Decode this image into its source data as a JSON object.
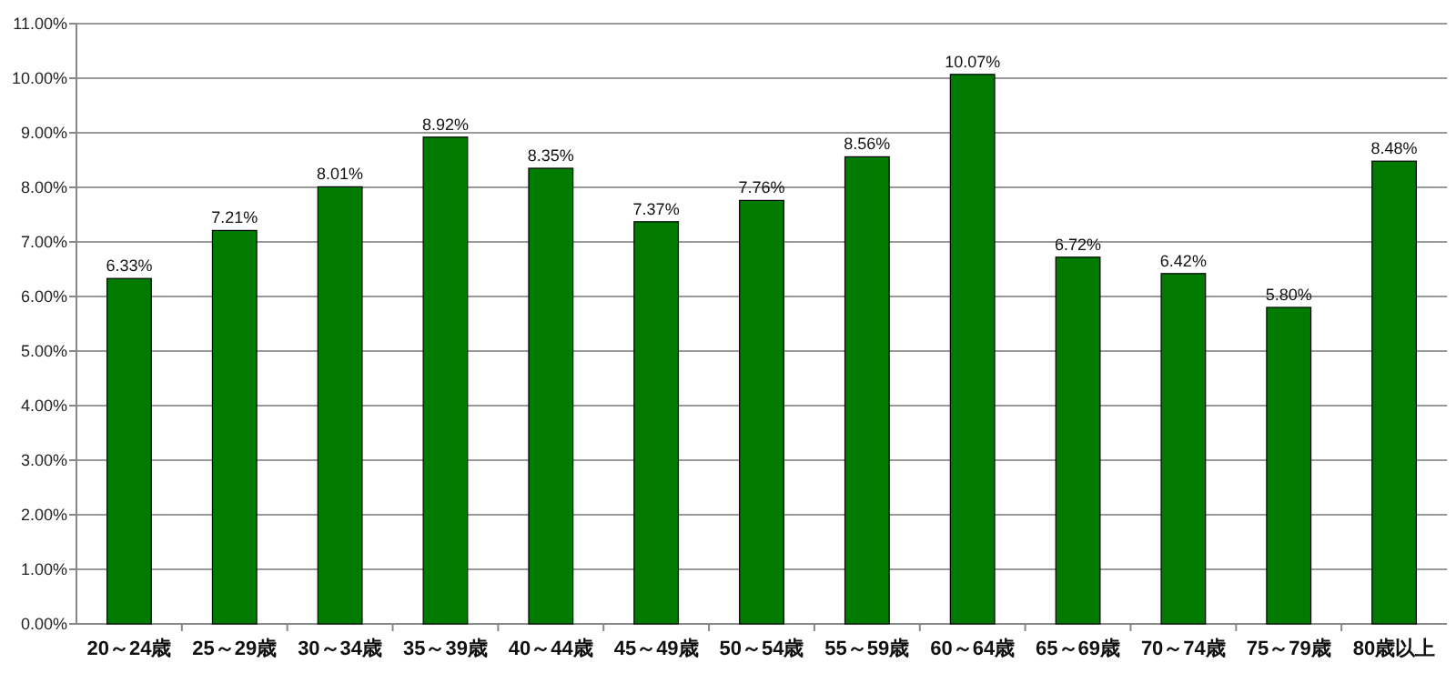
{
  "chart_data": {
    "type": "bar",
    "categories": [
      "20～24歳",
      "25～29歳",
      "30～34歳",
      "35～39歳",
      "40～44歳",
      "45～49歳",
      "50～54歳",
      "55～59歳",
      "60～64歳",
      "65～69歳",
      "70～74歳",
      "75～79歳",
      "80歳以上"
    ],
    "values": [
      6.33,
      7.21,
      8.01,
      8.92,
      8.35,
      7.37,
      7.76,
      8.56,
      10.07,
      6.72,
      6.42,
      5.8,
      8.48
    ],
    "value_labels": [
      "6.33%",
      "7.21%",
      "8.01%",
      "8.92%",
      "8.35%",
      "7.37%",
      "7.76%",
      "8.56%",
      "10.07%",
      "6.72%",
      "6.42%",
      "5.80%",
      "8.48%"
    ],
    "color": "#007a00",
    "ylim": [
      0,
      11
    ],
    "yticks": [
      {
        "value": 0,
        "label": "0.00%"
      },
      {
        "value": 1,
        "label": "1.00%"
      },
      {
        "value": 2,
        "label": "2.00%"
      },
      {
        "value": 3,
        "label": "3.00%"
      },
      {
        "value": 4,
        "label": "4.00%"
      },
      {
        "value": 5,
        "label": "5.00%"
      },
      {
        "value": 6,
        "label": "6.00%"
      },
      {
        "value": 7,
        "label": "7.00%"
      },
      {
        "value": 8,
        "label": "8.00%"
      },
      {
        "value": 9,
        "label": "9.00%"
      },
      {
        "value": 10,
        "label": "10.00%"
      },
      {
        "value": 11,
        "label": "11.00%"
      }
    ],
    "grid": "y"
  }
}
